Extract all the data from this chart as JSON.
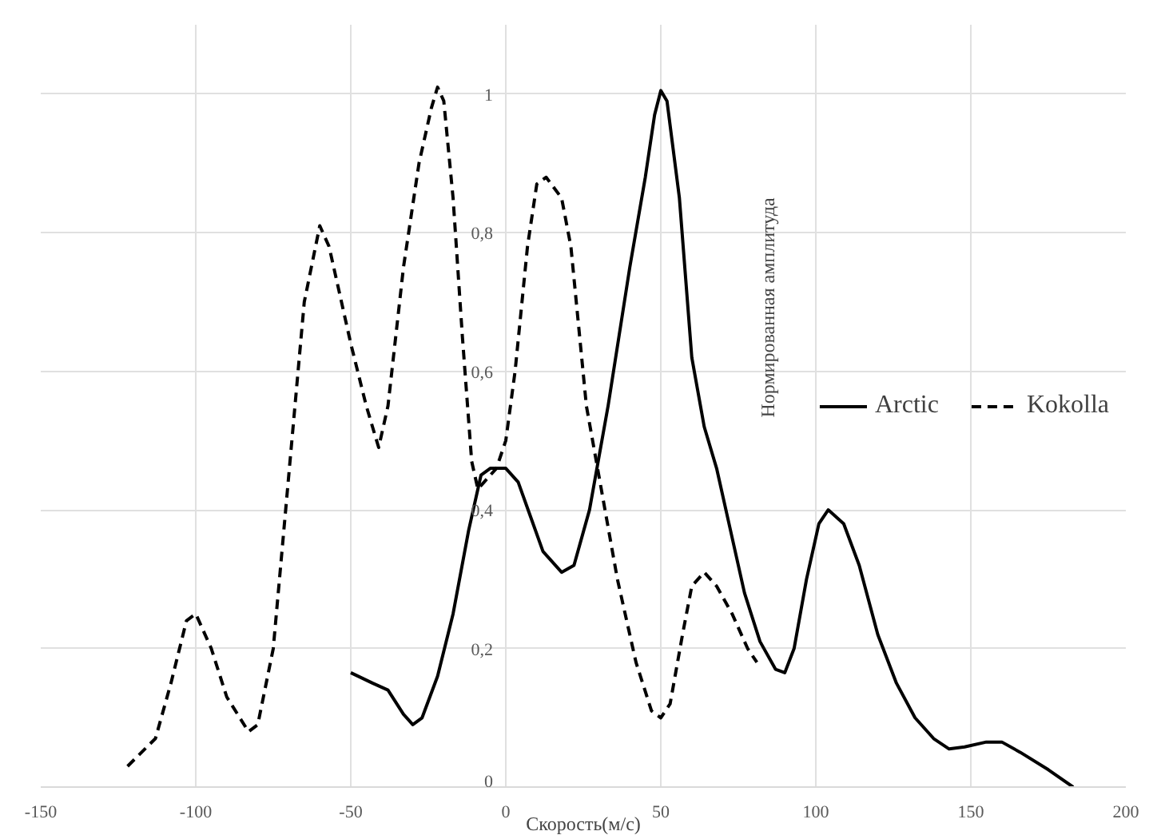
{
  "chart_data": {
    "type": "line",
    "xlabel": "Скорость(м/с)",
    "ylabel": "Нормированная амплитуда",
    "xlim": [
      -150,
      200
    ],
    "xticks": [
      -150,
      -100,
      -50,
      0,
      50,
      100,
      150,
      200
    ],
    "ylim": [
      0,
      1.1
    ],
    "yticks": [
      0,
      {
        "value": 0.2,
        "label": "0,2"
      },
      {
        "value": 0.4,
        "label": "0,4"
      },
      {
        "value": 0.6,
        "label": "0,6"
      },
      {
        "value": 0.8,
        "label": "0,8"
      },
      1
    ],
    "grid": true,
    "legend": "right",
    "marker": "none",
    "series": [
      {
        "name": "Arctic",
        "color": "#000000",
        "line_style": "solid",
        "x": [
          -50,
          -43,
          -38,
          -33,
          -30,
          -27,
          -22,
          -17,
          -12,
          -8,
          -5,
          0,
          4,
          8,
          12,
          18,
          22,
          27,
          33,
          40,
          45,
          48,
          50,
          52,
          56,
          60,
          64,
          68,
          72,
          77,
          82,
          87,
          90,
          93,
          97,
          101,
          104,
          109,
          114,
          120,
          126,
          132,
          138,
          143,
          148,
          155,
          160,
          166,
          175,
          183
        ],
        "values": [
          0.165,
          0.15,
          0.14,
          0.105,
          0.09,
          0.1,
          0.16,
          0.25,
          0.37,
          0.45,
          0.46,
          0.46,
          0.44,
          0.39,
          0.34,
          0.31,
          0.32,
          0.4,
          0.55,
          0.75,
          0.88,
          0.97,
          1.005,
          0.99,
          0.85,
          0.62,
          0.52,
          0.46,
          0.38,
          0.28,
          0.21,
          0.17,
          0.165,
          0.2,
          0.3,
          0.38,
          0.4,
          0.38,
          0.32,
          0.22,
          0.15,
          0.1,
          0.07,
          0.055,
          0.058,
          0.065,
          0.065,
          0.05,
          0.025,
          0.0
        ]
      },
      {
        "name": "Kokolla",
        "color": "#000000",
        "line_style": "dashed",
        "x": [
          -122,
          -113,
          -108,
          -103,
          -100,
          -95,
          -90,
          -83,
          -80,
          -75,
          -70,
          -65,
          -60,
          -57,
          -50,
          -45,
          -41,
          -38,
          -33,
          -28,
          -24,
          -22,
          -20,
          -17,
          -14,
          -11,
          -9,
          -7,
          -3,
          0,
          3,
          7,
          10,
          13,
          18,
          21,
          26,
          30,
          36,
          42,
          47,
          50,
          53,
          57,
          60,
          64,
          68,
          73,
          78,
          81
        ],
        "values": [
          0.03,
          0.07,
          0.15,
          0.24,
          0.25,
          0.2,
          0.13,
          0.08,
          0.09,
          0.2,
          0.45,
          0.7,
          0.81,
          0.78,
          0.64,
          0.55,
          0.49,
          0.55,
          0.75,
          0.9,
          0.98,
          1.01,
          0.99,
          0.85,
          0.65,
          0.47,
          0.43,
          0.44,
          0.46,
          0.5,
          0.6,
          0.78,
          0.87,
          0.88,
          0.85,
          0.78,
          0.55,
          0.45,
          0.3,
          0.18,
          0.11,
          0.1,
          0.12,
          0.22,
          0.29,
          0.31,
          0.29,
          0.25,
          0.2,
          0.18
        ]
      }
    ]
  }
}
